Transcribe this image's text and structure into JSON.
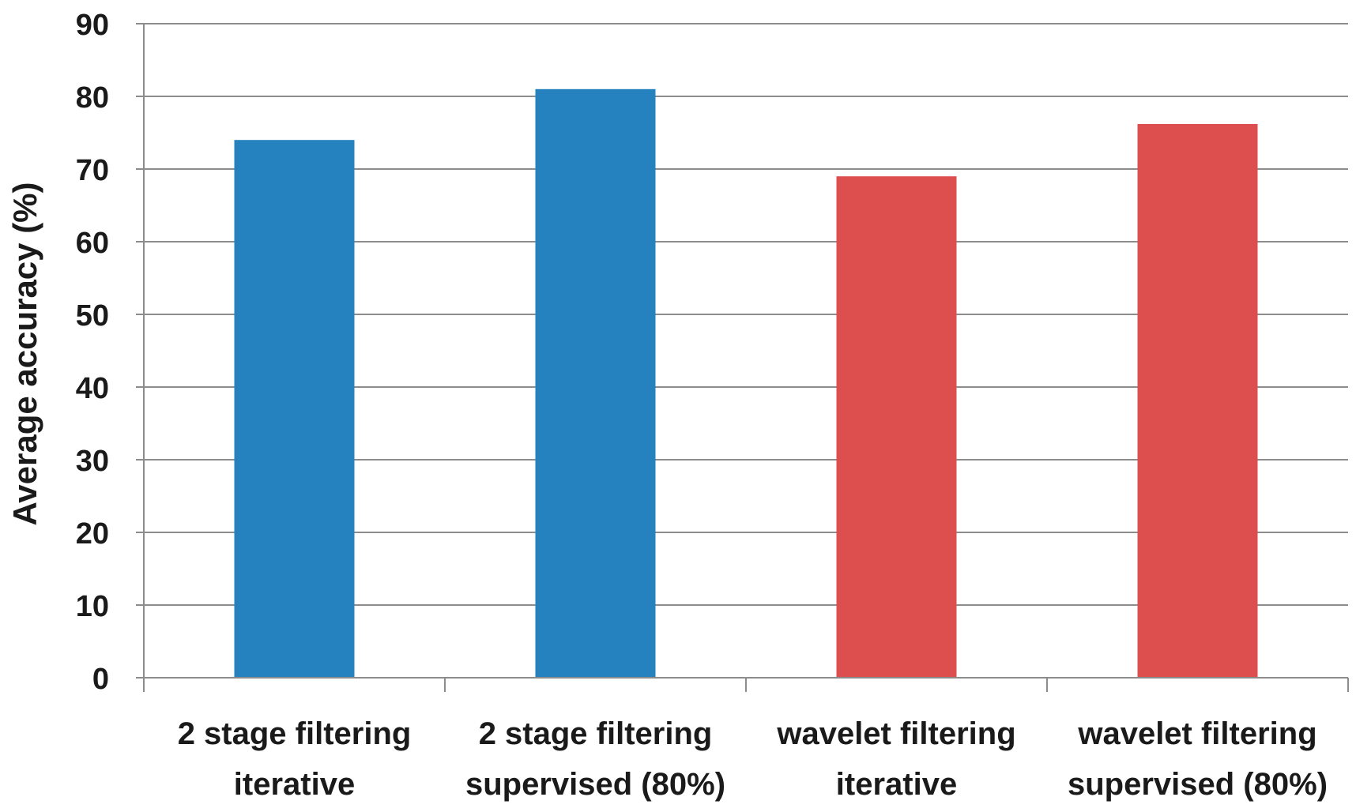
{
  "chart_data": {
    "type": "bar",
    "title": "",
    "xlabel": "",
    "ylabel": "Average accuracy  (%)",
    "categories": [
      [
        "2 stage filtering",
        "iterative"
      ],
      [
        "2 stage filtering",
        "supervised (80%)"
      ],
      [
        "wavelet filtering",
        "iterative"
      ],
      [
        "wavelet filtering",
        "supervised (80%)"
      ]
    ],
    "values": [
      74,
      81,
      69,
      76.2
    ],
    "bar_colors": [
      "#2681bf",
      "#2681bf",
      "#dc4f4e",
      "#dc4f4e"
    ],
    "ylim": [
      0,
      90
    ],
    "yticks": [
      0,
      10,
      20,
      30,
      40,
      50,
      60,
      70,
      80,
      90
    ],
    "grid": true,
    "legend": "none"
  }
}
